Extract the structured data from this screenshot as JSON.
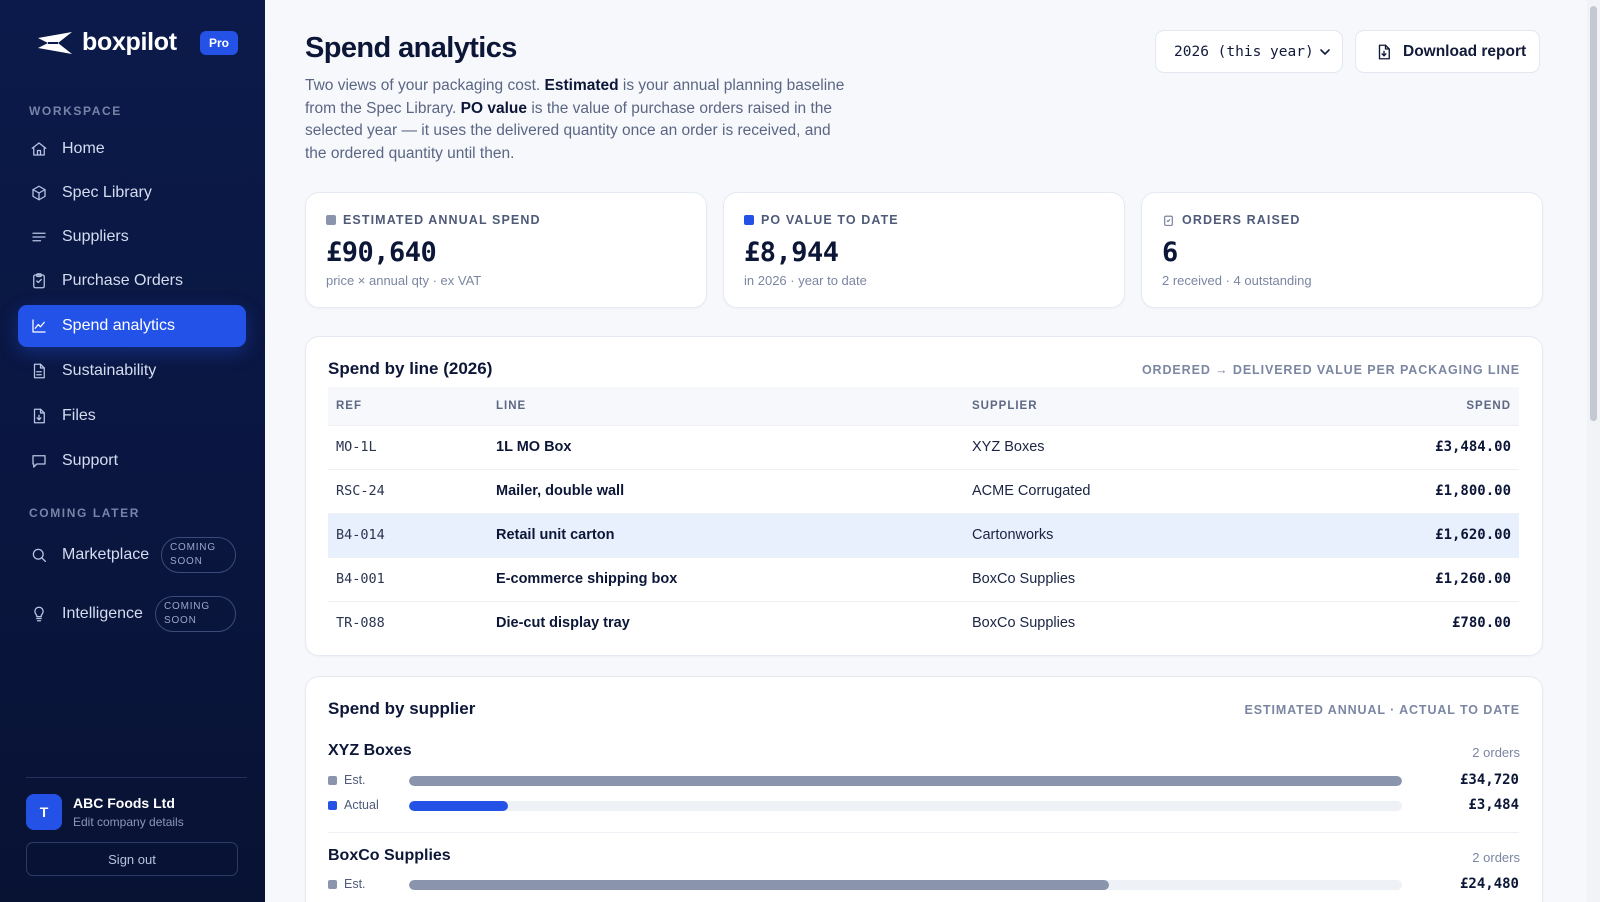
{
  "brand": {
    "name": "boxpilot",
    "plan_badge": "Pro"
  },
  "sidebar": {
    "workspace_label": "WORKSPACE",
    "items": [
      {
        "label": "Home",
        "icon": "home-icon"
      },
      {
        "label": "Spec Library",
        "icon": "box-icon"
      },
      {
        "label": "Suppliers",
        "icon": "lines-icon"
      },
      {
        "label": "Purchase Orders",
        "icon": "clipboard-icon"
      },
      {
        "label": "Spend analytics",
        "icon": "chart-icon",
        "active": true
      },
      {
        "label": "Sustainability",
        "icon": "document-icon"
      },
      {
        "label": "Files",
        "icon": "file-download-icon"
      },
      {
        "label": "Support",
        "icon": "chat-icon"
      }
    ],
    "later_label": "COMING LATER",
    "later_items": [
      {
        "label": "Marketplace",
        "icon": "search-icon",
        "pill": "COMING SOON"
      },
      {
        "label": "Intelligence",
        "icon": "lightbulb-icon",
        "pill": "COMING SOON"
      }
    ],
    "company": {
      "initial": "T",
      "name": "ABC Foods Ltd",
      "sub": "Edit company details"
    },
    "signout": "Sign out"
  },
  "header": {
    "title": "Spend analytics",
    "intro_1": "Two views of your packaging cost.",
    "intro_b1": "Estimated",
    "intro_2": "is your annual planning baseline from the Spec Library.",
    "intro_b2": "PO value",
    "intro_3": "is the value of purchase orders raised in the selected year — it uses the delivered quantity once an order is received, and the ordered quantity until then.",
    "year_select": "2026 (this year)",
    "download": "Download report"
  },
  "kpis": [
    {
      "label": "ESTIMATED ANNUAL SPEND",
      "value": "£90,640",
      "sub": "price × annual qty · ex VAT",
      "color": "#8a95ad"
    },
    {
      "label": "PO VALUE TO DATE",
      "value": "£8,944",
      "sub": "in 2026 · year to date",
      "color": "#2451e6"
    },
    {
      "label": "ORDERS RAISED",
      "value": "6",
      "sub": "2 received · 4 outstanding",
      "icon": "clipboard-check-icon"
    }
  ],
  "lines_table": {
    "title": "Spend by line (2026)",
    "note": "ORDERED → DELIVERED VALUE PER PACKAGING LINE",
    "headers": {
      "ref": "REF",
      "line": "LINE",
      "supplier": "SUPPLIER",
      "spend": "SPEND"
    },
    "rows": [
      {
        "ref": "MO-1L",
        "line": "1L MO Box",
        "supplier": "XYZ Boxes",
        "spend": "£3,484.00"
      },
      {
        "ref": "RSC-24",
        "line": "Mailer, double wall",
        "supplier": "ACME Corrugated",
        "spend": "£1,800.00"
      },
      {
        "ref": "B4-014",
        "line": "Retail unit carton",
        "supplier": "Cartonworks",
        "spend": "£1,620.00"
      },
      {
        "ref": "B4-001",
        "line": "E-commerce shipping box",
        "supplier": "BoxCo Supplies",
        "spend": "£1,260.00"
      },
      {
        "ref": "TR-088",
        "line": "Die-cut display tray",
        "supplier": "BoxCo Supplies",
        "spend": "£780.00"
      }
    ]
  },
  "suppliers_panel": {
    "title": "Spend by supplier",
    "note": "ESTIMATED ANNUAL · ACTUAL TO DATE",
    "est_label": "Est.",
    "actual_label": "Actual",
    "est_color": "#8a95ad",
    "actual_color": "#2451e6",
    "suppliers": [
      {
        "name": "XYZ Boxes",
        "orders": "2 orders",
        "est_value": "£34,720",
        "est_fraction": 1.0,
        "actual_value": "£3,484",
        "actual_fraction": 0.1
      },
      {
        "name": "BoxCo Supplies",
        "orders": "2 orders",
        "est_value": "£24,480",
        "est_fraction": 0.705
      }
    ]
  }
}
